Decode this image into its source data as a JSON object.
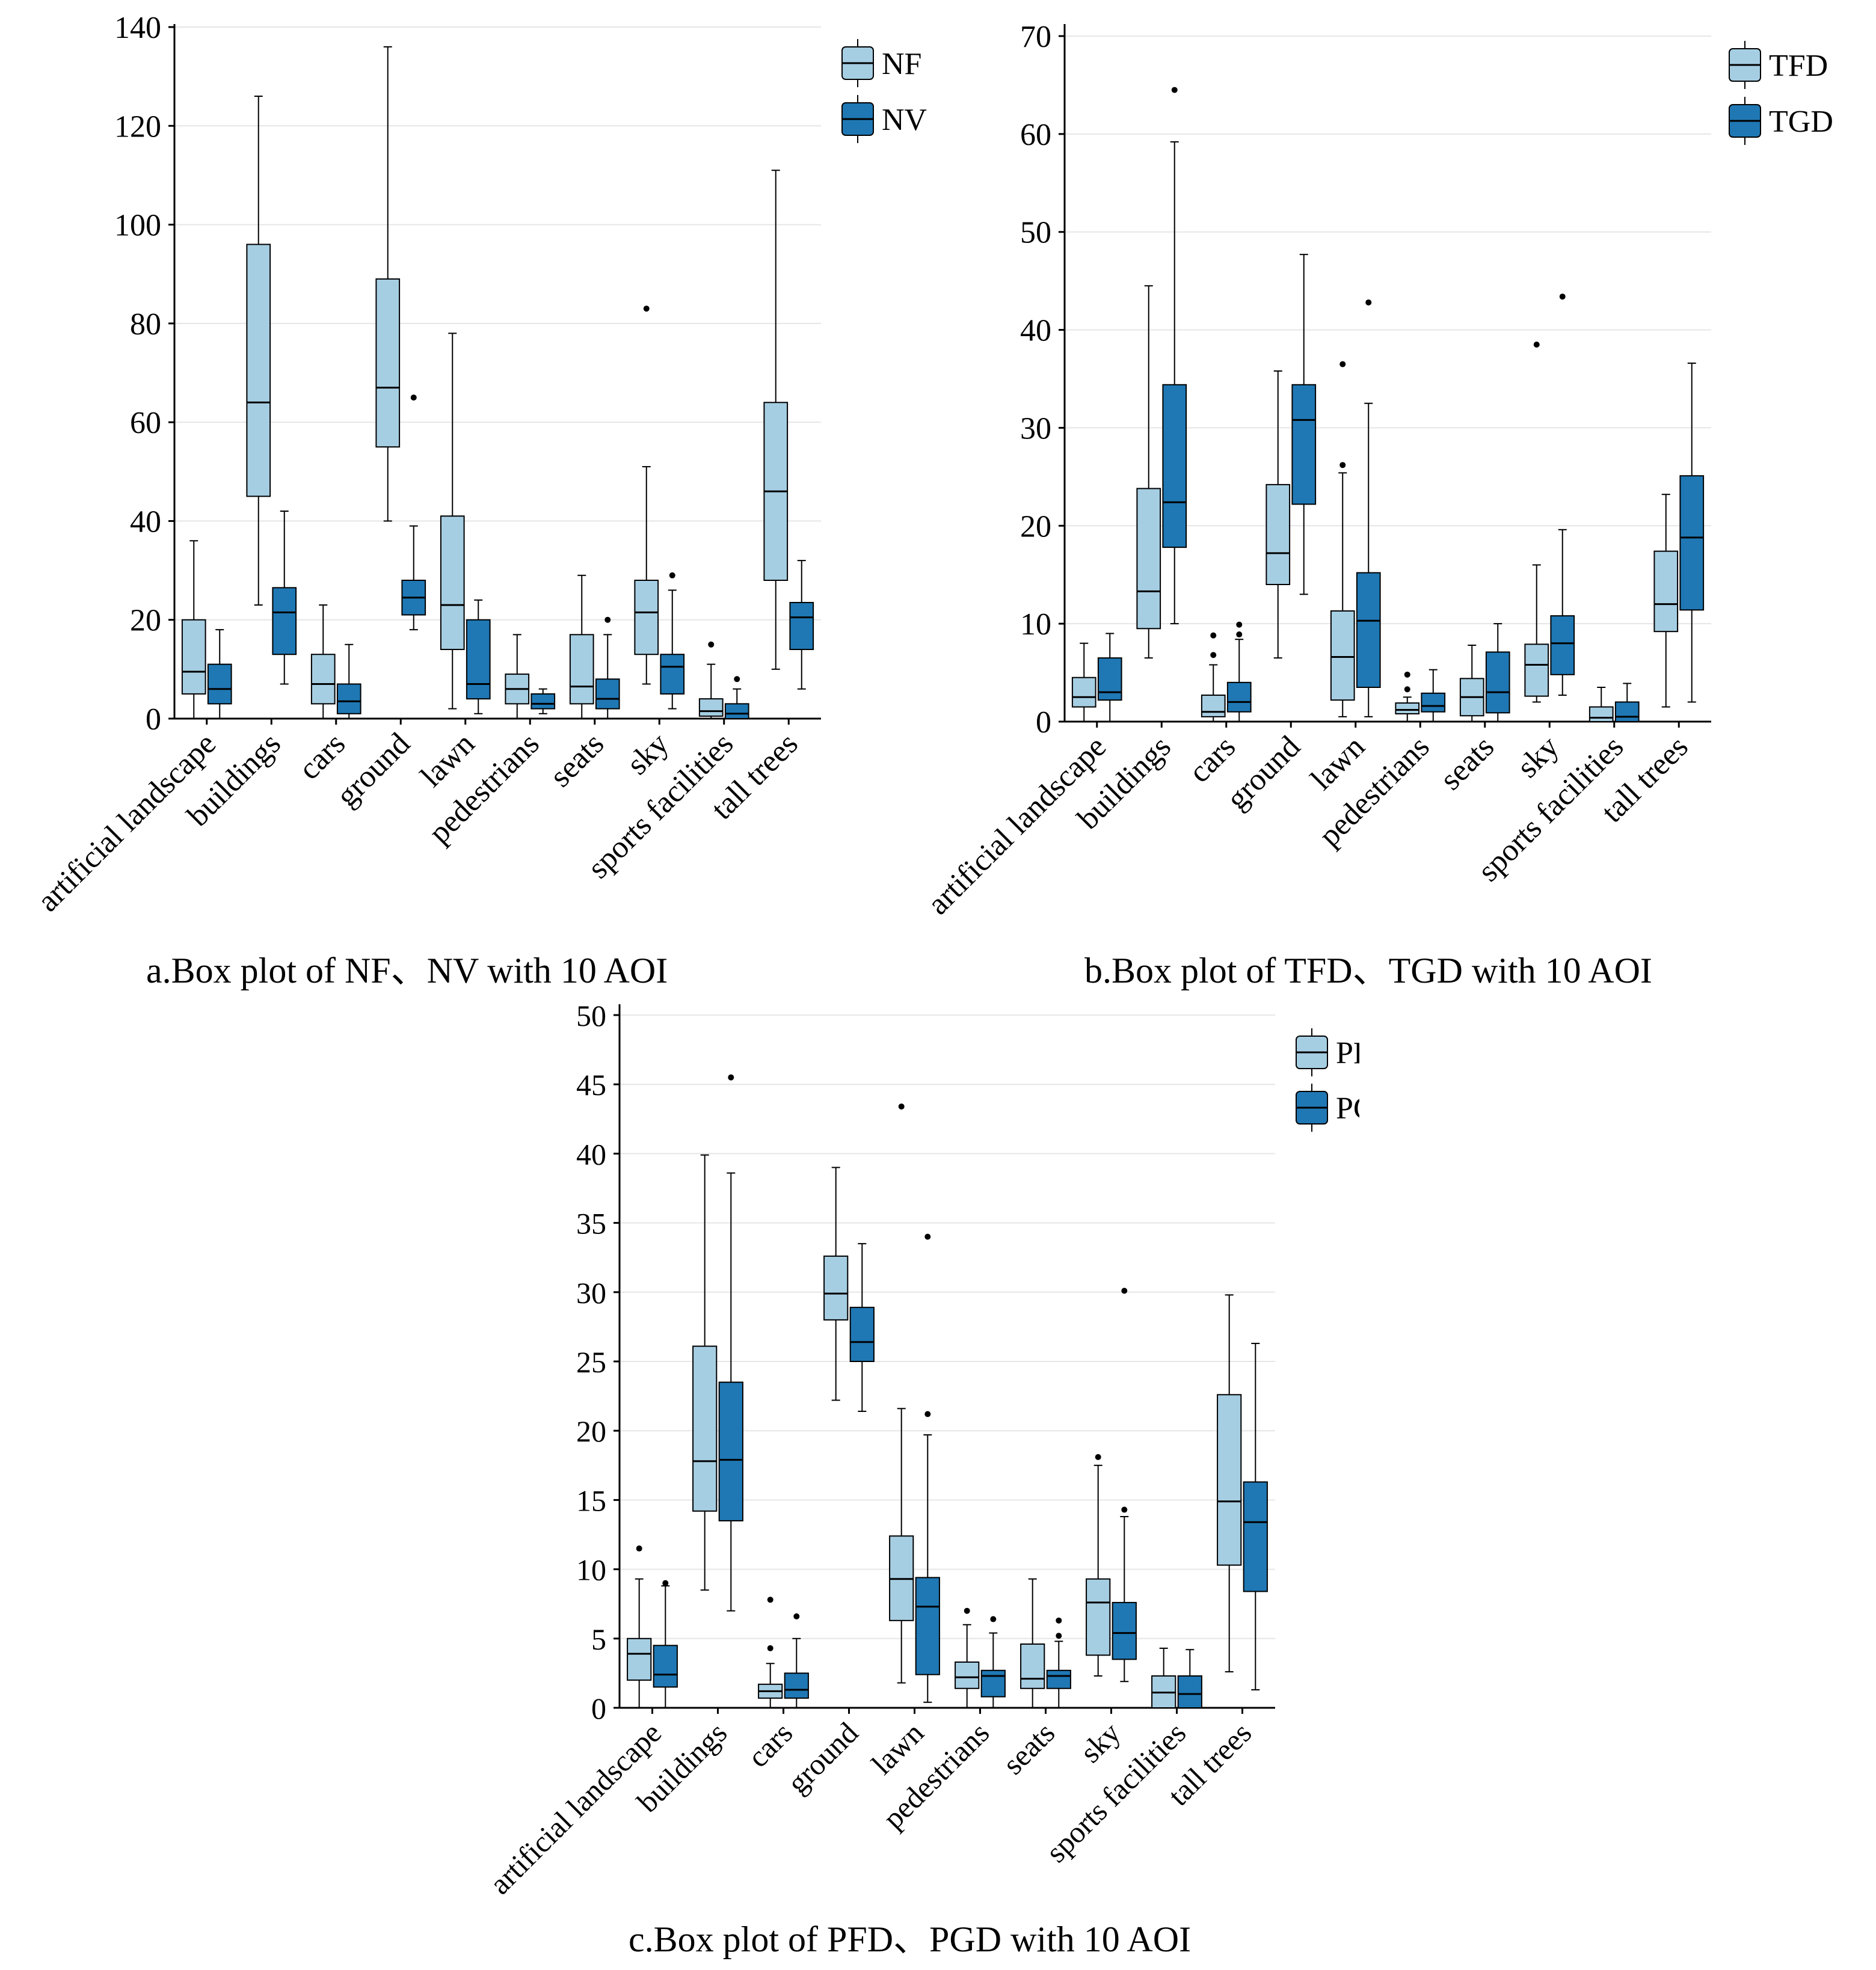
{
  "colors": {
    "light": "#a6cee3",
    "dark": "#1f78b4",
    "grid": "#e6e6e6",
    "stroke": "#000000"
  },
  "chart_data": [
    {
      "type": "box",
      "id": "a",
      "caption": "a.Box plot of NF、NV with 10 AOI",
      "categories": [
        "artificial landscape",
        "buildings",
        "cars",
        "ground",
        "lawn",
        "pedestrians",
        "seats",
        "sky",
        "sports facilities",
        "tall trees"
      ],
      "ylim": [
        0,
        140
      ],
      "yticks": [
        0,
        20,
        40,
        60,
        80,
        100,
        120,
        140
      ],
      "ytick_labels": [
        "0",
        "20",
        "40",
        "60",
        "80",
        "100",
        "120",
        "140"
      ],
      "grid": true,
      "legend": "top-right",
      "series": [
        {
          "name": "NF",
          "color": "light",
          "boxes": [
            {
              "min": 0,
              "q1": 5,
              "median": 9.5,
              "q3": 20,
              "max": 36,
              "outliers": []
            },
            {
              "min": 23,
              "q1": 45,
              "median": 64,
              "q3": 96,
              "max": 126,
              "outliers": []
            },
            {
              "min": 0,
              "q1": 3,
              "median": 7,
              "q3": 13,
              "max": 23,
              "outliers": []
            },
            {
              "min": 40,
              "q1": 55,
              "median": 67,
              "q3": 89,
              "max": 136,
              "outliers": []
            },
            {
              "min": 2,
              "q1": 14,
              "median": 23,
              "q3": 41,
              "max": 78,
              "outliers": []
            },
            {
              "min": 0,
              "q1": 3,
              "median": 6,
              "q3": 9,
              "max": 17,
              "outliers": []
            },
            {
              "min": 0,
              "q1": 3,
              "median": 6.5,
              "q3": 17,
              "max": 29,
              "outliers": []
            },
            {
              "min": 7,
              "q1": 13,
              "median": 21.5,
              "q3": 28,
              "max": 51,
              "outliers": [
                83
              ]
            },
            {
              "min": 0,
              "q1": 0.5,
              "median": 1.5,
              "q3": 4,
              "max": 11,
              "outliers": [
                15
              ]
            },
            {
              "min": 10,
              "q1": 28,
              "median": 46,
              "q3": 64,
              "max": 111,
              "outliers": []
            }
          ]
        },
        {
          "name": "NV",
          "color": "dark",
          "boxes": [
            {
              "min": 0,
              "q1": 3,
              "median": 6,
              "q3": 11,
              "max": 18,
              "outliers": []
            },
            {
              "min": 7,
              "q1": 13,
              "median": 21.5,
              "q3": 26.5,
              "max": 42,
              "outliers": []
            },
            {
              "min": 0,
              "q1": 1,
              "median": 3.5,
              "q3": 7,
              "max": 15,
              "outliers": []
            },
            {
              "min": 18,
              "q1": 21,
              "median": 24.5,
              "q3": 28,
              "max": 39,
              "outliers": [
                65
              ]
            },
            {
              "min": 1,
              "q1": 4,
              "median": 7,
              "q3": 20,
              "max": 24,
              "outliers": []
            },
            {
              "min": 1,
              "q1": 2,
              "median": 3,
              "q3": 5,
              "max": 6,
              "outliers": []
            },
            {
              "min": 0,
              "q1": 2,
              "median": 4,
              "q3": 8,
              "max": 17,
              "outliers": [
                20
              ]
            },
            {
              "min": 2,
              "q1": 5,
              "median": 10.5,
              "q3": 13,
              "max": 26,
              "outliers": [
                29
              ]
            },
            {
              "min": 0,
              "q1": 0,
              "median": 1,
              "q3": 3,
              "max": 6,
              "outliers": [
                8
              ]
            },
            {
              "min": 6,
              "q1": 14,
              "median": 20.5,
              "q3": 23.5,
              "max": 32,
              "outliers": []
            }
          ]
        }
      ]
    },
    {
      "type": "box",
      "id": "b",
      "caption": "b.Box plot of TFD、TGD with 10 AOI",
      "categories": [
        "artificial landscape",
        "buildings",
        "cars",
        "ground",
        "lawn",
        "pedestrians",
        "seats",
        "sky",
        "sports facilities",
        "tall trees"
      ],
      "ylim": [
        0,
        70
      ],
      "yticks": [
        0,
        10,
        20,
        30,
        40,
        50,
        60,
        70
      ],
      "ytick_labels": [
        "0",
        "10",
        "20",
        "30",
        "40",
        "50",
        "60",
        "70"
      ],
      "grid": true,
      "legend": "top-right",
      "series": [
        {
          "name": "TFD",
          "color": "light",
          "boxes": [
            {
              "min": 0,
              "q1": 1.5,
              "median": 2.5,
              "q3": 4.5,
              "max": 8,
              "outliers": []
            },
            {
              "min": 6.5,
              "q1": 9.5,
              "median": 13.3,
              "q3": 23.8,
              "max": 44.5,
              "outliers": []
            },
            {
              "min": 0,
              "q1": 0.5,
              "median": 1,
              "q3": 2.7,
              "max": 5.8,
              "outliers": [
                6.8,
                8.8
              ]
            },
            {
              "min": 6.5,
              "q1": 14,
              "median": 17.2,
              "q3": 24.2,
              "max": 35.8,
              "outliers": []
            },
            {
              "min": 0.5,
              "q1": 2.2,
              "median": 6.6,
              "q3": 11.3,
              "max": 25.4,
              "outliers": [
                26.2,
                36.5
              ]
            },
            {
              "min": 0,
              "q1": 0.8,
              "median": 1.2,
              "q3": 1.9,
              "max": 2.5,
              "outliers": [
                3.3,
                4.8
              ]
            },
            {
              "min": 0,
              "q1": 0.6,
              "median": 2.5,
              "q3": 4.4,
              "max": 7.8,
              "outliers": []
            },
            {
              "min": 2,
              "q1": 2.6,
              "median": 5.8,
              "q3": 7.9,
              "max": 16,
              "outliers": [
                38.5
              ]
            },
            {
              "min": 0,
              "q1": 0,
              "median": 0.4,
              "q3": 1.5,
              "max": 3.5,
              "outliers": []
            },
            {
              "min": 1.5,
              "q1": 9.2,
              "median": 12,
              "q3": 17.4,
              "max": 23.2,
              "outliers": []
            }
          ]
        },
        {
          "name": "TGD",
          "color": "dark",
          "boxes": [
            {
              "min": 0,
              "q1": 2.2,
              "median": 3,
              "q3": 6.5,
              "max": 9,
              "outliers": []
            },
            {
              "min": 10,
              "q1": 17.8,
              "median": 22.4,
              "q3": 34.4,
              "max": 59.2,
              "outliers": [
                64.5
              ]
            },
            {
              "min": 0,
              "q1": 1,
              "median": 2,
              "q3": 4,
              "max": 8.4,
              "outliers": [
                8.9,
                9.9
              ]
            },
            {
              "min": 13,
              "q1": 22.2,
              "median": 30.8,
              "q3": 34.4,
              "max": 47.7,
              "outliers": []
            },
            {
              "min": 0.5,
              "q1": 3.5,
              "median": 10.3,
              "q3": 15.2,
              "max": 32.5,
              "outliers": [
                42.8
              ]
            },
            {
              "min": 0,
              "q1": 1,
              "median": 1.6,
              "q3": 2.9,
              "max": 5.3,
              "outliers": []
            },
            {
              "min": 0,
              "q1": 0.9,
              "median": 3,
              "q3": 7.1,
              "max": 10,
              "outliers": []
            },
            {
              "min": 2.7,
              "q1": 4.8,
              "median": 8,
              "q3": 10.8,
              "max": 19.6,
              "outliers": [
                43.4
              ]
            },
            {
              "min": 0,
              "q1": 0,
              "median": 0.5,
              "q3": 2,
              "max": 3.9,
              "outliers": []
            },
            {
              "min": 2,
              "q1": 11.4,
              "median": 18.8,
              "q3": 25.1,
              "max": 36.6,
              "outliers": []
            }
          ]
        }
      ]
    },
    {
      "type": "box",
      "id": "c",
      "caption": "c.Box plot of PFD、PGD with 10 AOI",
      "categories": [
        "artificial landscape",
        "buildings",
        "cars",
        "ground",
        "lawn",
        "pedestrians",
        "seats",
        "sky",
        "sports facilities",
        "tall trees"
      ],
      "ylim": [
        0,
        50
      ],
      "yticks": [
        0,
        5,
        10,
        15,
        20,
        25,
        30,
        35,
        40,
        45,
        50
      ],
      "ytick_labels": [
        "0",
        "5",
        "10",
        "15",
        "20",
        "25",
        "30",
        "35",
        "40",
        "45",
        "50"
      ],
      "grid": true,
      "legend": "top-right",
      "series": [
        {
          "name": "PFD",
          "color": "light",
          "boxes": [
            {
              "min": 0,
              "q1": 2,
              "median": 3.9,
              "q3": 5,
              "max": 9.3,
              "outliers": [
                11.5
              ]
            },
            {
              "min": 8.5,
              "q1": 14.2,
              "median": 17.8,
              "q3": 26.1,
              "max": 39.9,
              "outliers": []
            },
            {
              "min": 0,
              "q1": 0.7,
              "median": 1.2,
              "q3": 1.7,
              "max": 3.2,
              "outliers": [
                4.3,
                7.8
              ]
            },
            {
              "min": 22.2,
              "q1": 28,
              "median": 29.9,
              "q3": 32.6,
              "max": 39,
              "outliers": []
            },
            {
              "min": 1.8,
              "q1": 6.3,
              "median": 9.3,
              "q3": 12.4,
              "max": 21.6,
              "outliers": [
                43.4
              ]
            },
            {
              "min": 0,
              "q1": 1.4,
              "median": 2.2,
              "q3": 3.3,
              "max": 6,
              "outliers": [
                7
              ]
            },
            {
              "min": 0,
              "q1": 1.4,
              "median": 2.1,
              "q3": 4.6,
              "max": 9.3,
              "outliers": []
            },
            {
              "min": 2.3,
              "q1": 3.8,
              "median": 7.6,
              "q3": 9.3,
              "max": 17.5,
              "outliers": [
                18.1
              ]
            },
            {
              "min": 0,
              "q1": 0,
              "median": 1.1,
              "q3": 2.3,
              "max": 4.3,
              "outliers": []
            },
            {
              "min": 2.6,
              "q1": 10.3,
              "median": 14.9,
              "q3": 22.6,
              "max": 29.8,
              "outliers": []
            }
          ]
        },
        {
          "name": "PGD",
          "color": "dark",
          "boxes": [
            {
              "min": 0,
              "q1": 1.5,
              "median": 2.4,
              "q3": 4.5,
              "max": 8.8,
              "outliers": [
                9
              ]
            },
            {
              "min": 7,
              "q1": 13.5,
              "median": 17.9,
              "q3": 23.5,
              "max": 38.6,
              "outliers": [
                45.5
              ]
            },
            {
              "min": 0,
              "q1": 0.7,
              "median": 1.3,
              "q3": 2.5,
              "max": 5,
              "outliers": [
                6.6
              ]
            },
            {
              "min": 21.4,
              "q1": 25,
              "median": 26.4,
              "q3": 28.9,
              "max": 33.5,
              "outliers": []
            },
            {
              "min": 0.4,
              "q1": 2.4,
              "median": 7.3,
              "q3": 9.4,
              "max": 19.7,
              "outliers": [
                21.2,
                34
              ]
            },
            {
              "min": 0,
              "q1": 0.8,
              "median": 2.3,
              "q3": 2.7,
              "max": 5.4,
              "outliers": [
                6.4
              ]
            },
            {
              "min": 0,
              "q1": 1.4,
              "median": 2.3,
              "q3": 2.7,
              "max": 4.8,
              "outliers": [
                5.2,
                6.3
              ]
            },
            {
              "min": 1.9,
              "q1": 3.5,
              "median": 5.4,
              "q3": 7.6,
              "max": 13.8,
              "outliers": [
                14.3,
                30.1
              ]
            },
            {
              "min": 0,
              "q1": 0,
              "median": 1,
              "q3": 2.3,
              "max": 4.2,
              "outliers": []
            },
            {
              "min": 1.3,
              "q1": 8.4,
              "median": 13.4,
              "q3": 16.3,
              "max": 26.3,
              "outliers": []
            }
          ]
        }
      ]
    }
  ]
}
